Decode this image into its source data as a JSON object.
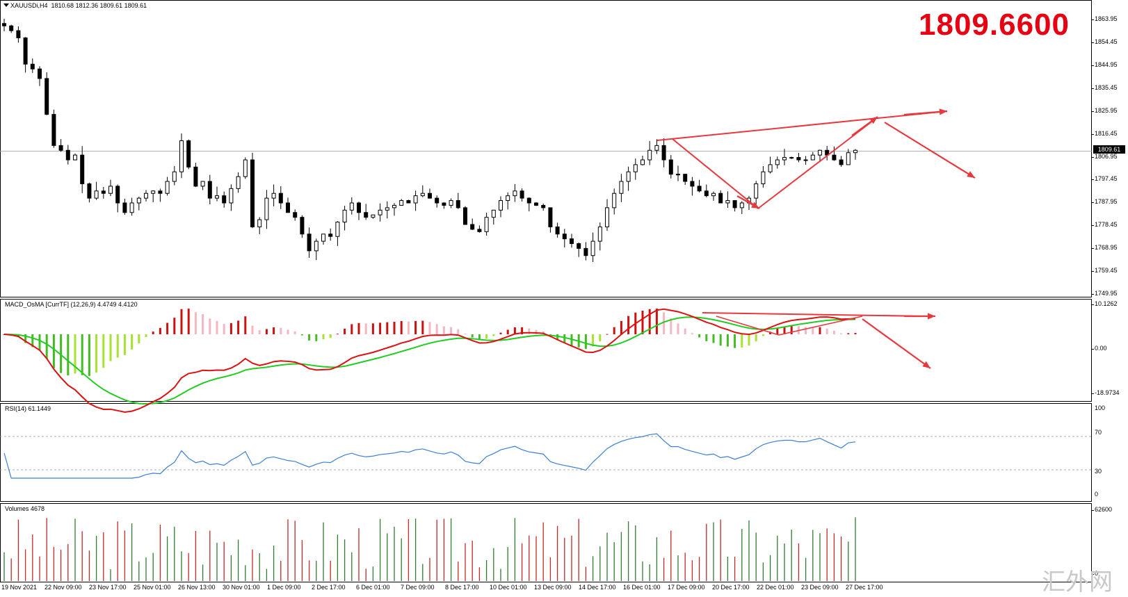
{
  "chart": {
    "symbol_label": "XAUUSDi,H4",
    "ohlc_text": "1810.68 1812.36 1809.61 1809.61",
    "big_price": "1809.6600",
    "current_price_flag": "1809.61",
    "watermark": "汇外网",
    "price_axis": [
      "1863.95",
      "1854.45",
      "1844.95",
      "1835.45",
      "1825.95",
      "1816.45",
      "1806.95",
      "1797.45",
      "1787.95",
      "1778.45",
      "1768.95",
      "1759.45",
      "1749.95"
    ],
    "time_axis": [
      "19 Nov 2021",
      "22 Nov 09:00",
      "23 Nov 17:00",
      "25 Nov 01:00",
      "26 Nov 13:00",
      "30 Nov 01:00",
      "1 Dec 09:00",
      "2 Dec 17:00",
      "6 Dec 01:00",
      "7 Dec 09:00",
      "8 Dec 17:00",
      "10 Dec 01:00",
      "13 Dec 09:00",
      "14 Dec 17:00",
      "16 Dec 01:00",
      "17 Dec 09:00",
      "20 Dec 17:00",
      "22 Dec 01:00",
      "23 Dec 09:00",
      "27 Dec 17:00"
    ]
  },
  "macd": {
    "label": "MACD_OsMA [CurrTF] (12,26,9) 4.4749 4.4120",
    "axis": [
      "10.1262",
      "0.00",
      "-18.9734"
    ]
  },
  "rsi": {
    "label": "RSI(14) 61.1449",
    "axis": [
      "100",
      "70",
      "30",
      "0"
    ]
  },
  "volumes": {
    "label": "Volumes 4678",
    "axis": [
      "62600",
      "0"
    ]
  },
  "colors": {
    "annotation": "#e8383d",
    "macd_signal": "#22cc22",
    "macd_main": "#dd1111",
    "rsi_line": "#3a7fd5",
    "bull_vol": "#2e7d32",
    "bear_vol": "#c62828"
  },
  "chart_data": {
    "type": "candlestick",
    "price_range": [
      1749.95,
      1867.0
    ],
    "closes": [
      1862,
      1860,
      1857,
      1846,
      1844,
      1840,
      1825,
      1812,
      1810,
      1806,
      1808,
      1796,
      1790,
      1793,
      1792,
      1795,
      1788,
      1784,
      1788,
      1790,
      1792,
      1793,
      1792,
      1797,
      1801,
      1814,
      1803,
      1795,
      1797,
      1790,
      1791,
      1788,
      1794,
      1799,
      1806,
      1778,
      1781,
      1790,
      1792,
      1788,
      1784,
      1782,
      1775,
      1768,
      1772,
      1775,
      1774,
      1780,
      1785,
      1788,
      1784,
      1782,
      1783,
      1785,
      1786,
      1787,
      1789,
      1788,
      1791,
      1792,
      1790,
      1788,
      1787,
      1789,
      1786,
      1779,
      1777,
      1776,
      1782,
      1785,
      1789,
      1791,
      1793,
      1790,
      1788,
      1787,
      1786,
      1778,
      1775,
      1773,
      1771,
      1769,
      1766,
      1772,
      1778,
      1786,
      1792,
      1797,
      1801,
      1804,
      1806,
      1810,
      1812,
      1806,
      1800,
      1800,
      1797,
      1795,
      1793,
      1791,
      1792,
      1788,
      1789,
      1786,
      1788,
      1790,
      1796,
      1801,
      1804,
      1806,
      1807,
      1807,
      1806,
      1806,
      1808,
      1810,
      1808,
      1806,
      1804,
      1809,
      1810
    ],
    "macd_main_final": 4.4749,
    "macd_signal_final": 4.412,
    "rsi_final": 61.1449,
    "rsi_levels": [
      70,
      30
    ],
    "volume_last": 4678,
    "volume_max": 62600
  }
}
